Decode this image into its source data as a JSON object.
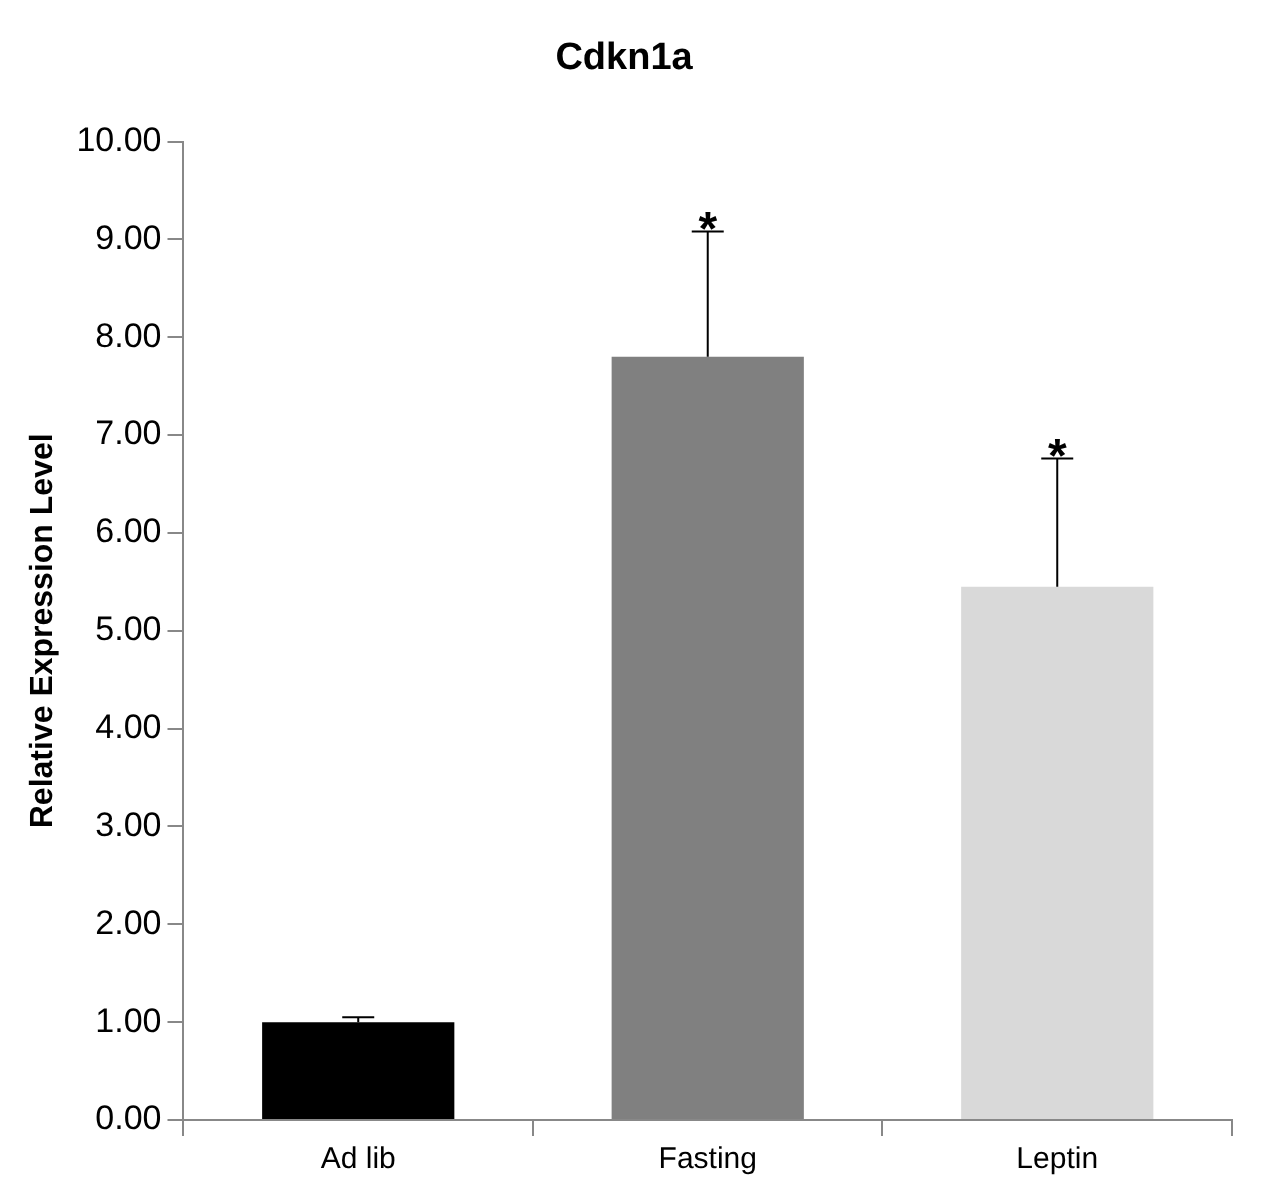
{
  "chart_data": {
    "type": "bar",
    "title": "Cdkn1a",
    "ylabel": "Relative Expression Level",
    "categories": [
      "Ad lib",
      "Fasting",
      "Leptin"
    ],
    "values": [
      1.0,
      7.8,
      5.45
    ],
    "colors": [
      "#000000",
      "#808080",
      "#d9d9d9"
    ],
    "errors": [
      [
        1.0,
        1.05
      ],
      [
        7.8,
        9.08
      ],
      [
        5.45,
        6.76
      ]
    ],
    "ylim": [
      0,
      10
    ],
    "yticks": [
      {
        "value": 0,
        "label": "0.00"
      },
      {
        "value": 1,
        "label": "1.00"
      },
      {
        "value": 2,
        "label": "2.00"
      },
      {
        "value": 3,
        "label": "3.00"
      },
      {
        "value": 4,
        "label": "4.00"
      },
      {
        "value": 5,
        "label": "5.00"
      },
      {
        "value": 6,
        "label": "6.00"
      },
      {
        "value": 7,
        "label": "7.00"
      },
      {
        "value": 8,
        "label": "8.00"
      },
      {
        "value": 9,
        "label": "9.00"
      },
      {
        "value": 10,
        "label": "10.00"
      }
    ],
    "annotations": [
      {
        "text": "*",
        "x": "Fasting",
        "y": 9.08
      },
      {
        "text": "*",
        "x": "Leptin",
        "y": 6.76
      }
    ],
    "grid": false,
    "legend": false
  }
}
